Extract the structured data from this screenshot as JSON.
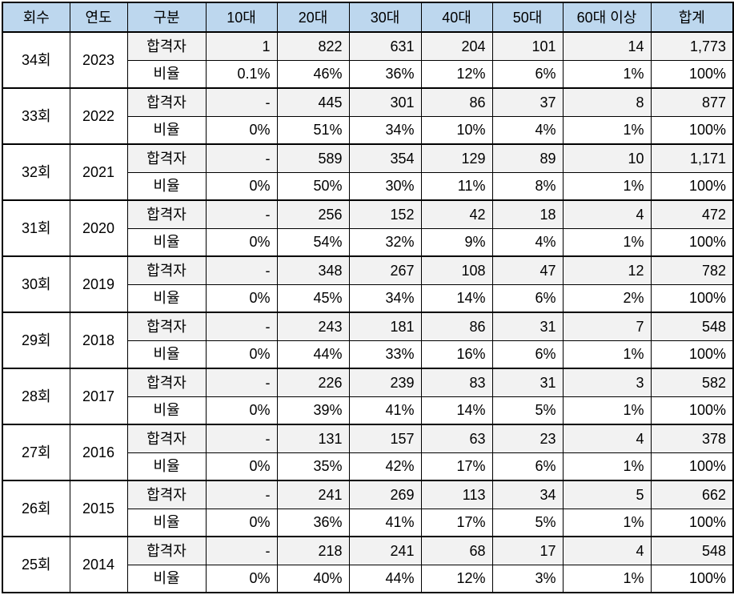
{
  "colors": {
    "header_bg": "#BDD7EE",
    "passers_row_bg": "#F2F2F2",
    "ratio_row_bg": "#FFFFFF",
    "border": "#000000"
  },
  "chart_data": {
    "type": "table",
    "columns": [
      "회수",
      "연도",
      "구분",
      "10대",
      "20대",
      "30대",
      "40대",
      "50대",
      "60대 이상",
      "합계"
    ],
    "row_labels": {
      "passers": "합격자",
      "ratio": "비율"
    },
    "groups": [
      {
        "session": "34회",
        "year": "2023",
        "passers": [
          "1",
          "822",
          "631",
          "204",
          "101",
          "14",
          "1,773"
        ],
        "ratio": [
          "0.1%",
          "46%",
          "36%",
          "12%",
          "6%",
          "1%",
          "100%"
        ]
      },
      {
        "session": "33회",
        "year": "2022",
        "passers": [
          "-",
          "445",
          "301",
          "86",
          "37",
          "8",
          "877"
        ],
        "ratio": [
          "0%",
          "51%",
          "34%",
          "10%",
          "4%",
          "1%",
          "100%"
        ]
      },
      {
        "session": "32회",
        "year": "2021",
        "passers": [
          "-",
          "589",
          "354",
          "129",
          "89",
          "10",
          "1,171"
        ],
        "ratio": [
          "0%",
          "50%",
          "30%",
          "11%",
          "8%",
          "1%",
          "100%"
        ]
      },
      {
        "session": "31회",
        "year": "2020",
        "passers": [
          "-",
          "256",
          "152",
          "42",
          "18",
          "4",
          "472"
        ],
        "ratio": [
          "0%",
          "54%",
          "32%",
          "9%",
          "4%",
          "1%",
          "100%"
        ]
      },
      {
        "session": "30회",
        "year": "2019",
        "passers": [
          "-",
          "348",
          "267",
          "108",
          "47",
          "12",
          "782"
        ],
        "ratio": [
          "0%",
          "45%",
          "34%",
          "14%",
          "6%",
          "2%",
          "100%"
        ]
      },
      {
        "session": "29회",
        "year": "2018",
        "passers": [
          "-",
          "243",
          "181",
          "86",
          "31",
          "7",
          "548"
        ],
        "ratio": [
          "0%",
          "44%",
          "33%",
          "16%",
          "6%",
          "1%",
          "100%"
        ]
      },
      {
        "session": "28회",
        "year": "2017",
        "passers": [
          "-",
          "226",
          "239",
          "83",
          "31",
          "3",
          "582"
        ],
        "ratio": [
          "0%",
          "39%",
          "41%",
          "14%",
          "5%",
          "1%",
          "100%"
        ]
      },
      {
        "session": "27회",
        "year": "2016",
        "passers": [
          "-",
          "131",
          "157",
          "63",
          "23",
          "4",
          "378"
        ],
        "ratio": [
          "0%",
          "35%",
          "42%",
          "17%",
          "6%",
          "1%",
          "100%"
        ]
      },
      {
        "session": "26회",
        "year": "2015",
        "passers": [
          "-",
          "241",
          "269",
          "113",
          "34",
          "5",
          "662"
        ],
        "ratio": [
          "0%",
          "36%",
          "41%",
          "17%",
          "5%",
          "1%",
          "100%"
        ]
      },
      {
        "session": "25회",
        "year": "2014",
        "passers": [
          "-",
          "218",
          "241",
          "68",
          "17",
          "4",
          "548"
        ],
        "ratio": [
          "0%",
          "40%",
          "44%",
          "12%",
          "3%",
          "1%",
          "100%"
        ]
      }
    ]
  }
}
